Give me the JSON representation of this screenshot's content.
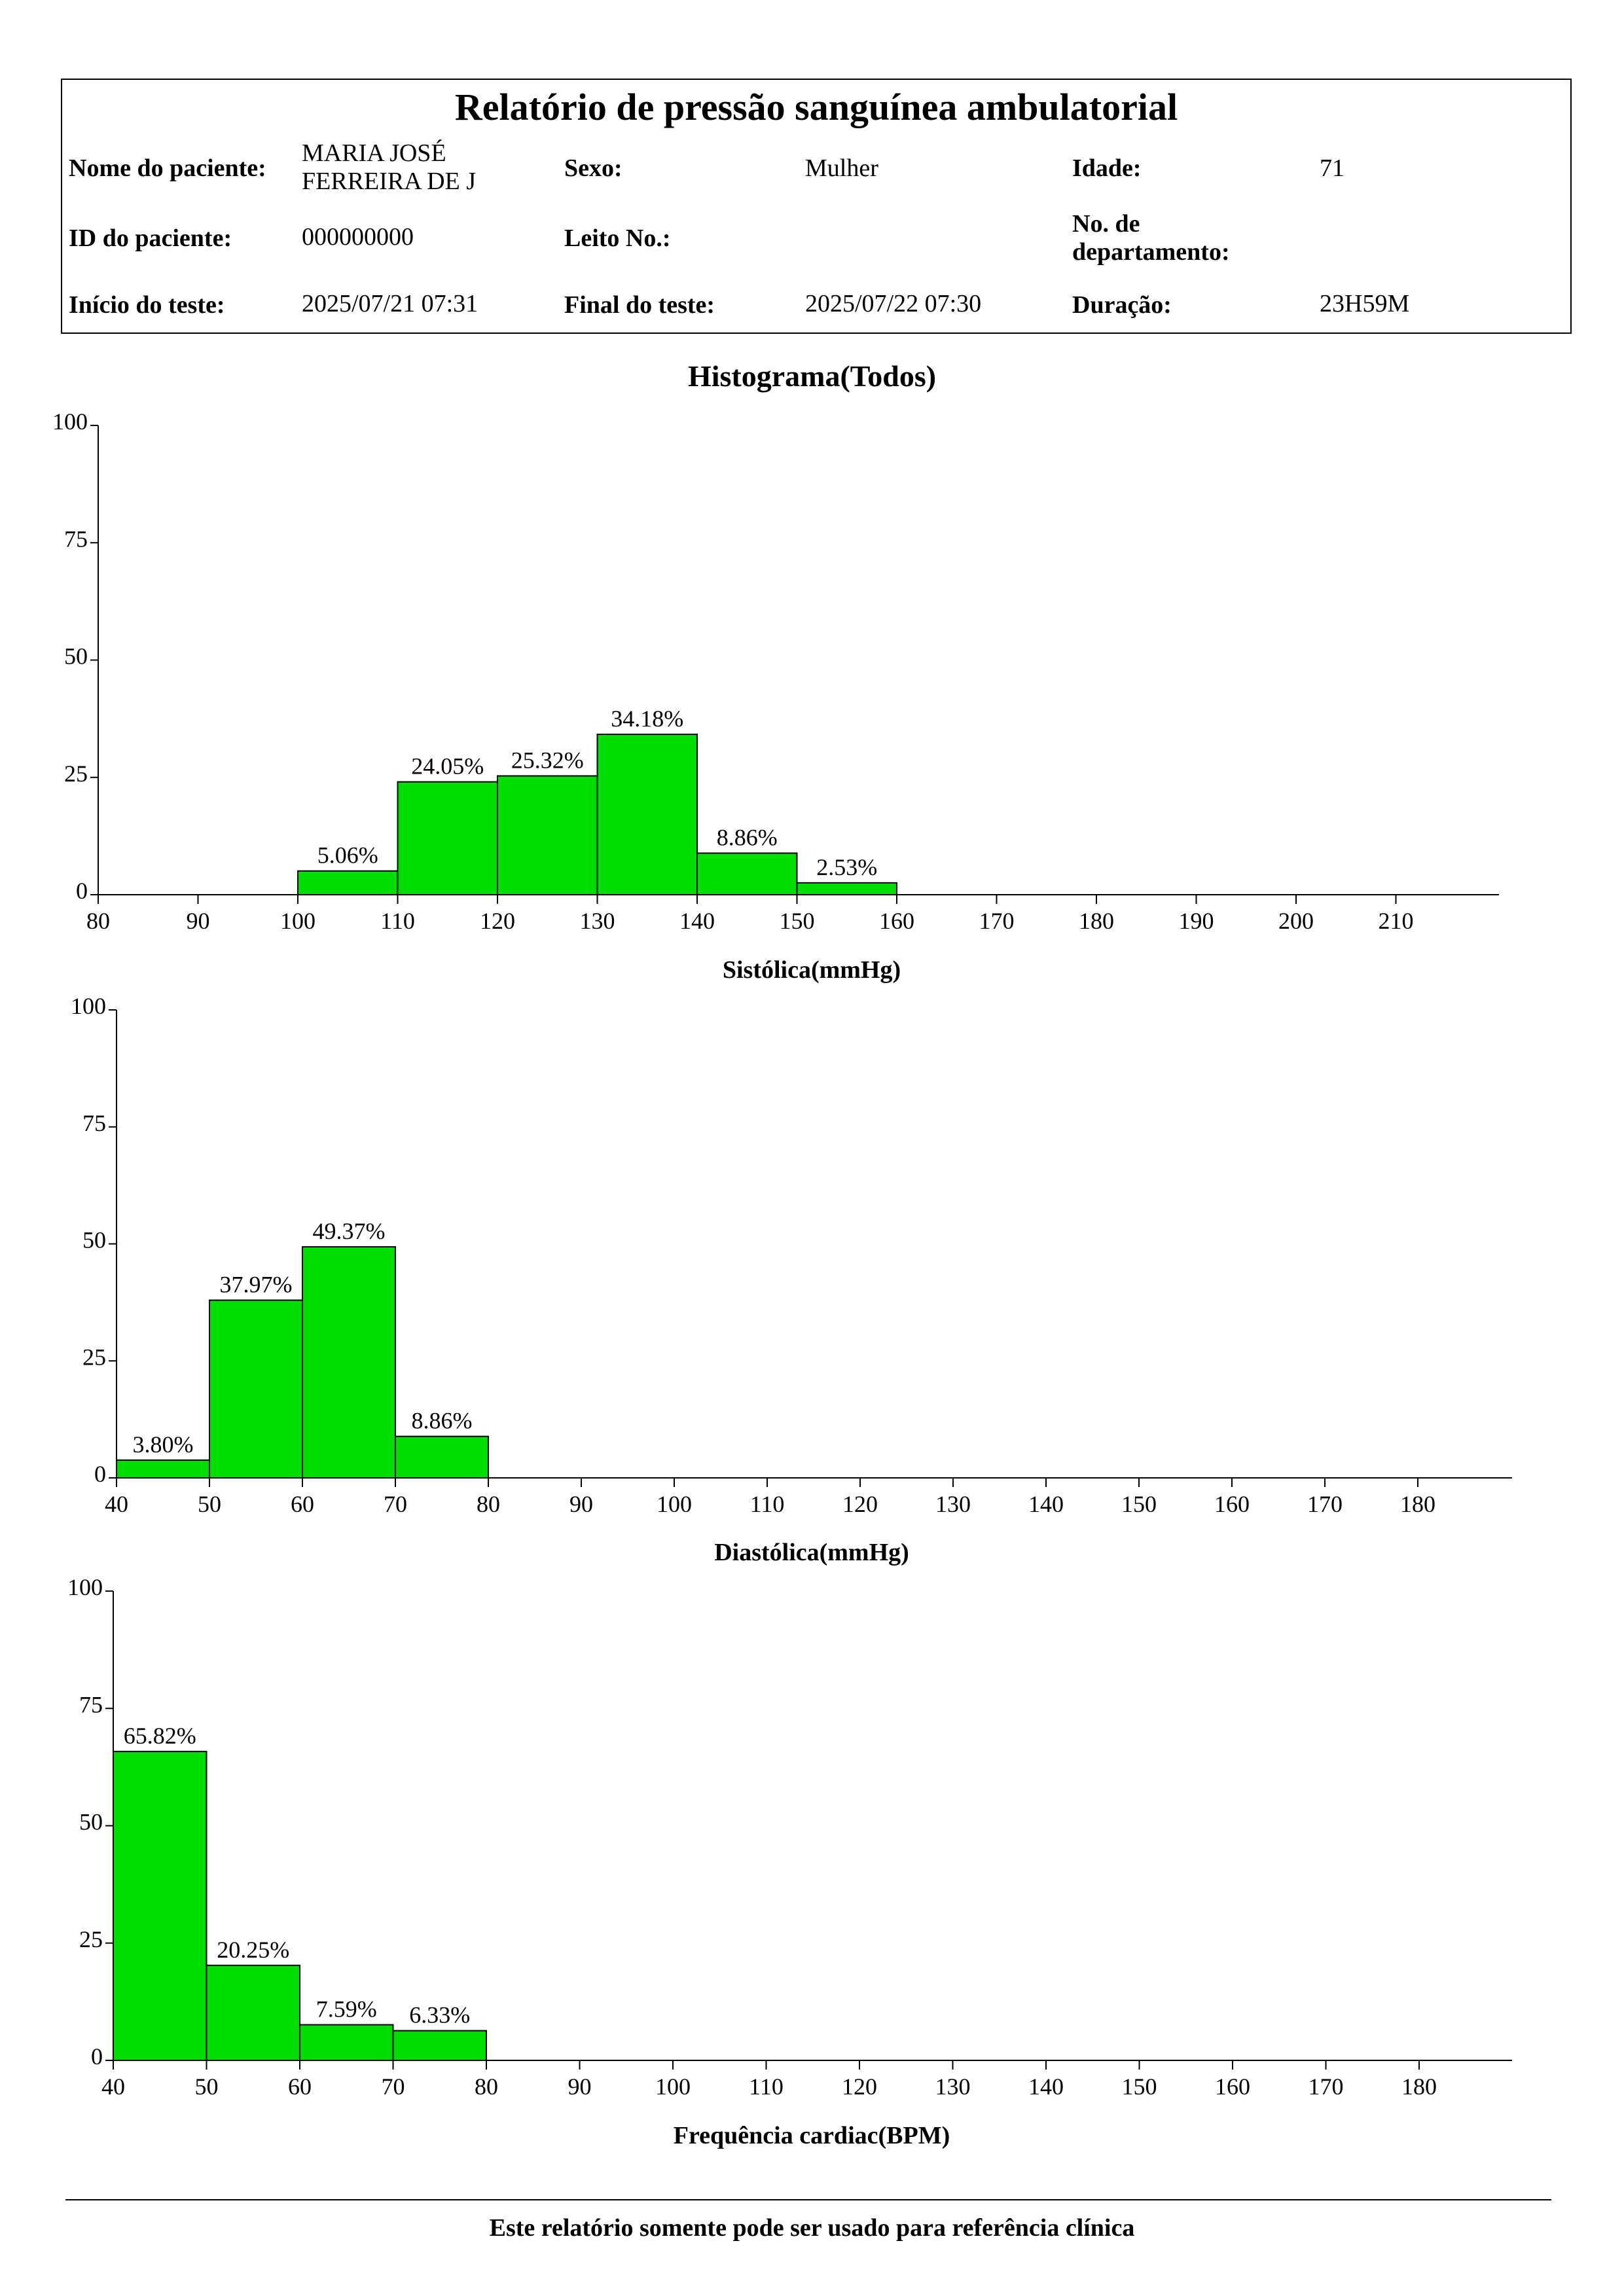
{
  "report": {
    "title": "Relatório de pressão sanguínea ambulatorial",
    "patient_name_label": "Nome do paciente:",
    "patient_name_line1": "MARIA JOSÉ",
    "patient_name_line2": "FERREIRA DE J",
    "sex_label": "Sexo:",
    "sex_value": "Mulher",
    "age_label": "Idade:",
    "age_value": "71",
    "patient_id_label": "ID do paciente:",
    "patient_id_value": "000000000",
    "bed_label": "Leito No.:",
    "bed_value": "",
    "department_label_line1": "No. de",
    "department_label_line2": "departamento:",
    "department_value": "",
    "test_start_label": "Início do teste:",
    "test_start_value": "2025/07/21 07:31",
    "test_end_label": "Final do teste:",
    "test_end_value": "2025/07/22 07:30",
    "duration_label": "Duração:",
    "duration_value": "23H59M"
  },
  "section_title": "Histograma(Todos)",
  "footer": "Este relatório somente pode ser usado para referência clínica",
  "colors": {
    "bar_fill": "#00dd00",
    "bar_stroke": "#000000"
  },
  "chart_data": [
    {
      "type": "bar",
      "xlabel": "Sistólica(mmHg)",
      "ylim": [
        0,
        100
      ],
      "yticks": [
        0,
        25,
        50,
        75,
        100
      ],
      "xticks": [
        80,
        90,
        100,
        110,
        120,
        130,
        140,
        150,
        160,
        170,
        180,
        190,
        200,
        210
      ],
      "bins": [
        {
          "from": 100,
          "to": 110,
          "value": 5.06,
          "label": "5.06%"
        },
        {
          "from": 110,
          "to": 120,
          "value": 24.05,
          "label": "24.05%"
        },
        {
          "from": 120,
          "to": 130,
          "value": 25.32,
          "label": "25.32%"
        },
        {
          "from": 130,
          "to": 140,
          "value": 34.18,
          "label": "34.18%"
        },
        {
          "from": 140,
          "to": 150,
          "value": 8.86,
          "label": "8.86%"
        },
        {
          "from": 150,
          "to": 160,
          "value": 2.53,
          "label": "2.53%"
        }
      ]
    },
    {
      "type": "bar",
      "xlabel": "Diastólica(mmHg)",
      "ylim": [
        0,
        100
      ],
      "yticks": [
        0,
        25,
        50,
        75,
        100
      ],
      "xticks": [
        40,
        50,
        60,
        70,
        80,
        90,
        100,
        110,
        120,
        130,
        140,
        150,
        160,
        170,
        180
      ],
      "bins": [
        {
          "from": 40,
          "to": 50,
          "value": 3.8,
          "label": "3.80%"
        },
        {
          "from": 50,
          "to": 60,
          "value": 37.97,
          "label": "37.97%"
        },
        {
          "from": 60,
          "to": 70,
          "value": 49.37,
          "label": "49.37%"
        },
        {
          "from": 70,
          "to": 80,
          "value": 8.86,
          "label": "8.86%"
        }
      ]
    },
    {
      "type": "bar",
      "xlabel": "Frequência cardiac(BPM)",
      "ylim": [
        0,
        100
      ],
      "yticks": [
        0,
        25,
        50,
        75,
        100
      ],
      "xticks": [
        40,
        50,
        60,
        70,
        80,
        90,
        100,
        110,
        120,
        130,
        140,
        150,
        160,
        170,
        180
      ],
      "bins": [
        {
          "from": 40,
          "to": 50,
          "value": 65.82,
          "label": "65.82%"
        },
        {
          "from": 50,
          "to": 60,
          "value": 20.25,
          "label": "20.25%"
        },
        {
          "from": 60,
          "to": 70,
          "value": 7.59,
          "label": "7.59%"
        },
        {
          "from": 70,
          "to": 80,
          "value": 6.33,
          "label": "6.33%"
        }
      ]
    }
  ]
}
